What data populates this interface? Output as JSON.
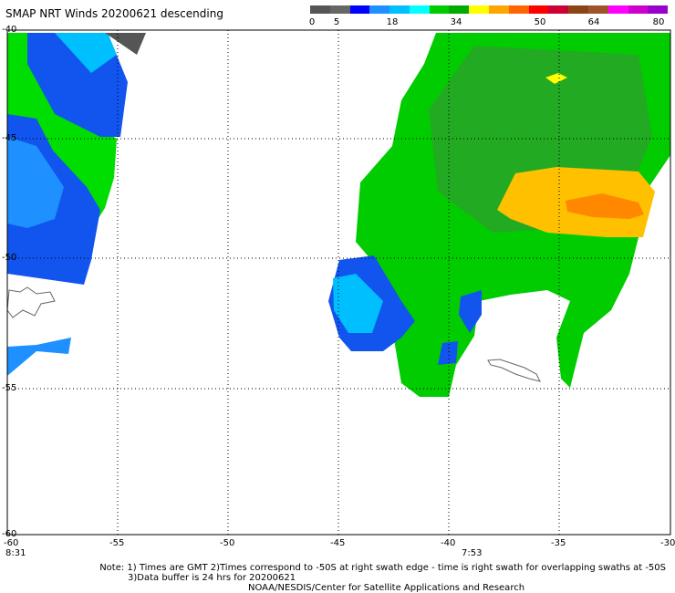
{
  "title": "SMAP NRT Winds  20200621  descending",
  "colorbar": {
    "ticks": [
      "0",
      "5",
      "18",
      "34",
      "50",
      "64",
      "80"
    ],
    "segments": [
      "#555555",
      "#666666",
      "#0000ff",
      "#1e90ff",
      "#00bfff",
      "#00ffff",
      "#00cc00",
      "#00aa00",
      "#ffff00",
      "#ffa500",
      "#ff6600",
      "#ff0000",
      "#cc0033",
      "#8b4513",
      "#a0522d",
      "#ff00ff",
      "#cc00cc",
      "#9900cc"
    ]
  },
  "axes": {
    "y_ticks": [
      "-40",
      "-45",
      "-50",
      "-55",
      "-60"
    ],
    "x_ticks": [
      "-60",
      "-55",
      "-50",
      "-45",
      "-40",
      "-35",
      "-30"
    ]
  },
  "times": {
    "left": "8:31",
    "mid": "7:53"
  },
  "notes": {
    "line1": "Note: 1) Times are GMT 2)Times correspond to -50S at right swath edge - time is right swath for overlapping swaths at -50S",
    "line2": "3)Data buffer is 24 hrs for 20200621",
    "line3": "NOAA/NESDIS/Center for Satellite Applications and Research"
  }
}
